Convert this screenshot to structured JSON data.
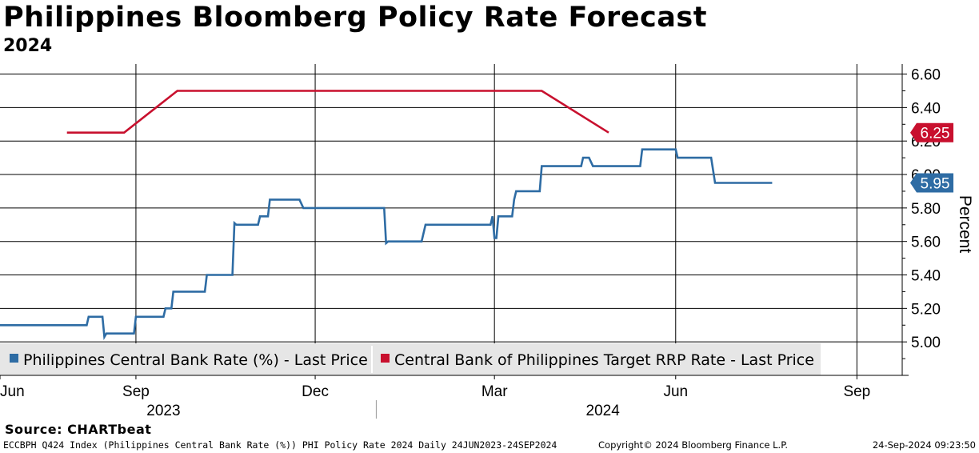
{
  "header": {
    "title": "Philippines Bloomberg Policy Rate Forecast",
    "subtitle": "2024"
  },
  "footer": {
    "source": "Source: CHARTbeat",
    "ticker_line": "ECCBPH Q424 Index (Philippines Central Bank Rate (%)) PHI Policy Rate 2024  Daily 24JUN2023-24SEP2024",
    "copyright": "Copyright© 2024 Bloomberg Finance L.P.",
    "timestamp": "24-Sep-2024 09:23:50"
  },
  "colors": {
    "series_blue": "#2e6ca4",
    "series_red": "#c8102e",
    "grid": "#000000",
    "legend_bg": "#e6e6e6"
  },
  "chart_data": {
    "type": "line",
    "title": "Philippines Bloomberg Policy Rate Forecast",
    "subtitle": "2024",
    "ylabel": "Percent",
    "ylim": [
      4.8,
      6.66
    ],
    "xlim": [
      "2023-06-24",
      "2024-09-24"
    ],
    "y_ticks": [
      "5.00",
      "5.20",
      "5.40",
      "5.60",
      "5.80",
      "6.00",
      "6.20",
      "6.40",
      "6.60"
    ],
    "x_ticks": [
      {
        "label": "Jun",
        "date": "2023-06-24"
      },
      {
        "label": "Sep",
        "date": "2023-09-01"
      },
      {
        "label": "Dec",
        "date": "2023-12-01"
      },
      {
        "label": "Mar",
        "date": "2024-03-01"
      },
      {
        "label": "Jun",
        "date": "2024-06-01"
      },
      {
        "label": "Sep",
        "date": "2024-09-01"
      }
    ],
    "year_labels": [
      {
        "label": "2023",
        "date": "2023-09-15"
      },
      {
        "label": "2024",
        "date": "2024-04-25"
      }
    ],
    "year_separator": "2024-01-01",
    "grid": true,
    "legend_placement": "bottom-left",
    "series": [
      {
        "name": "Philippines Central Bank Rate (%) - Last Price",
        "color": "#2e6ca4",
        "last_value": "5.95",
        "points": [
          [
            "2023-06-24",
            5.1
          ],
          [
            "2023-08-07",
            5.1
          ],
          [
            "2023-08-08",
            5.15
          ],
          [
            "2023-08-15",
            5.15
          ],
          [
            "2023-08-16",
            5.03
          ],
          [
            "2023-08-17",
            5.05
          ],
          [
            "2023-08-31",
            5.05
          ],
          [
            "2023-09-01",
            5.15
          ],
          [
            "2023-09-15",
            5.15
          ],
          [
            "2023-09-16",
            5.2
          ],
          [
            "2023-09-19",
            5.2
          ],
          [
            "2023-09-20",
            5.3
          ],
          [
            "2023-10-06",
            5.3
          ],
          [
            "2023-10-07",
            5.4
          ],
          [
            "2023-10-20",
            5.4
          ],
          [
            "2023-10-21",
            5.71
          ],
          [
            "2023-10-22",
            5.7
          ],
          [
            "2023-11-02",
            5.7
          ],
          [
            "2023-11-03",
            5.75
          ],
          [
            "2023-11-07",
            5.75
          ],
          [
            "2023-11-08",
            5.85
          ],
          [
            "2023-11-23",
            5.85
          ],
          [
            "2023-11-25",
            5.8
          ],
          [
            "2024-01-05",
            5.8
          ],
          [
            "2024-01-06",
            5.59
          ],
          [
            "2024-01-07",
            5.6
          ],
          [
            "2024-01-24",
            5.6
          ],
          [
            "2024-01-26",
            5.7
          ],
          [
            "2024-02-28",
            5.7
          ],
          [
            "2024-02-29",
            5.75
          ],
          [
            "2024-02-29",
            5.75
          ],
          [
            "2024-03-01",
            5.62
          ],
          [
            "2024-03-02",
            5.62
          ],
          [
            "2024-03-03",
            5.75
          ],
          [
            "2024-03-10",
            5.75
          ],
          [
            "2024-03-11",
            5.85
          ],
          [
            "2024-03-12",
            5.9
          ],
          [
            "2024-03-24",
            5.9
          ],
          [
            "2024-03-25",
            6.05
          ],
          [
            "2024-04-14",
            6.05
          ],
          [
            "2024-04-15",
            6.1
          ],
          [
            "2024-04-18",
            6.1
          ],
          [
            "2024-04-20",
            6.05
          ],
          [
            "2024-05-14",
            6.05
          ],
          [
            "2024-05-15",
            6.15
          ],
          [
            "2024-06-01",
            6.15
          ],
          [
            "2024-06-02",
            6.1
          ],
          [
            "2024-06-19",
            6.1
          ],
          [
            "2024-06-21",
            5.95
          ],
          [
            "2024-07-20",
            5.95
          ]
        ]
      },
      {
        "name": "Central Bank of Philippines Target RRP Rate - Last Price",
        "color": "#c8102e",
        "last_value": "6.25",
        "points": [
          [
            "2023-07-28",
            6.25
          ],
          [
            "2023-08-26",
            6.25
          ],
          [
            "2023-09-22",
            6.5
          ],
          [
            "2024-03-25",
            6.5
          ],
          [
            "2024-04-28",
            6.25
          ]
        ]
      }
    ]
  }
}
